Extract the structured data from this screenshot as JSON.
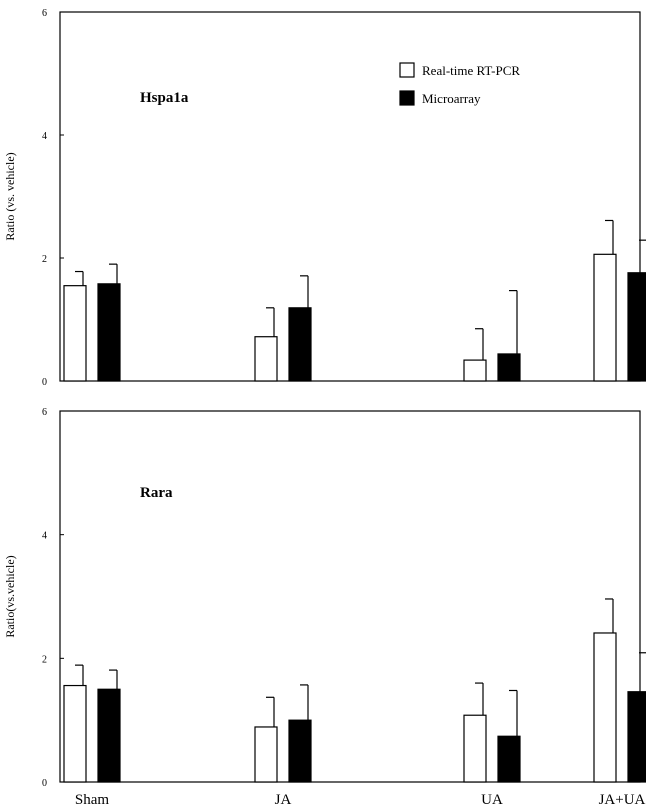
{
  "chart_data": [
    {
      "type": "bar",
      "title": "Hspa1a",
      "ylabel": "Ratio (vs. vehicle)",
      "xlabel": "",
      "ylim": [
        0,
        6
      ],
      "yticks": [
        "0",
        "2",
        "4",
        "6"
      ],
      "categories": [
        "Sham",
        "JA",
        "UA",
        "JA+UA"
      ],
      "show_category_labels": false,
      "legend": {
        "position": "top-right"
      },
      "series": [
        {
          "name": "Real-time RT-PCR",
          "color": "#ffffff",
          "values": [
            1.55,
            0.72,
            0.34,
            2.06
          ],
          "errors": [
            0.23,
            0.47,
            0.51,
            0.55
          ]
        },
        {
          "name": "Microarray",
          "color": "#000000",
          "values": [
            1.58,
            1.19,
            0.44,
            1.76
          ],
          "errors": [
            0.32,
            0.52,
            1.03,
            0.53
          ]
        }
      ]
    },
    {
      "type": "bar",
      "title": "Rara",
      "ylabel": "Ratio(vs.vehicle)",
      "xlabel": "",
      "ylim": [
        0,
        6
      ],
      "yticks": [
        "0",
        "2",
        "4",
        "6"
      ],
      "categories": [
        "Sham",
        "JA",
        "UA",
        "JA+UA"
      ],
      "show_category_labels": true,
      "series": [
        {
          "name": "Real-time RT-PCR",
          "color": "#ffffff",
          "values": [
            1.56,
            0.89,
            1.08,
            2.41
          ],
          "errors": [
            0.33,
            0.48,
            0.52,
            0.55
          ]
        },
        {
          "name": "Microarray",
          "color": "#000000",
          "values": [
            1.5,
            1.0,
            0.74,
            1.46
          ],
          "errors": [
            0.31,
            0.57,
            0.74,
            0.63
          ]
        }
      ]
    }
  ]
}
